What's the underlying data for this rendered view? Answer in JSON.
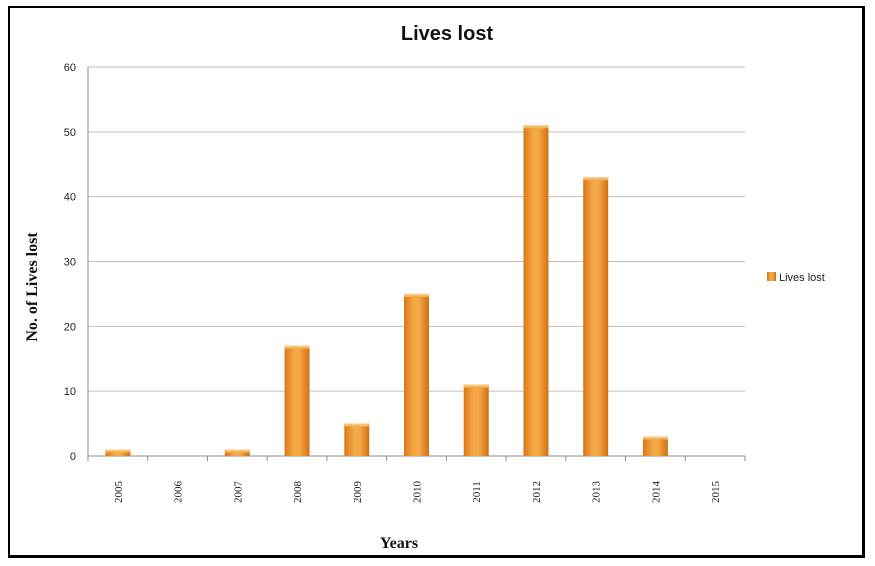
{
  "chart_data": {
    "type": "bar",
    "title": "Lives lost",
    "xlabel": "Years",
    "ylabel": "No. of Lives lost",
    "categories": [
      "2005",
      "2006",
      "2007",
      "2008",
      "2009",
      "2010",
      "2011",
      "2012",
      "2013",
      "2014",
      "2015"
    ],
    "series": [
      {
        "name": "Lives lost",
        "values": [
          1,
          0,
          1,
          17,
          5,
          25,
          11,
          51,
          43,
          3,
          0
        ]
      }
    ],
    "ylim": [
      0,
      60
    ],
    "yticks": [
      0,
      10,
      20,
      30,
      40,
      50,
      60
    ],
    "grid": true,
    "legend": "right",
    "colors": {
      "bar_light": "#f7b657",
      "bar": "#ef9a2e",
      "bar_dark": "#d9791a",
      "grid": "#bfbfbf"
    }
  }
}
